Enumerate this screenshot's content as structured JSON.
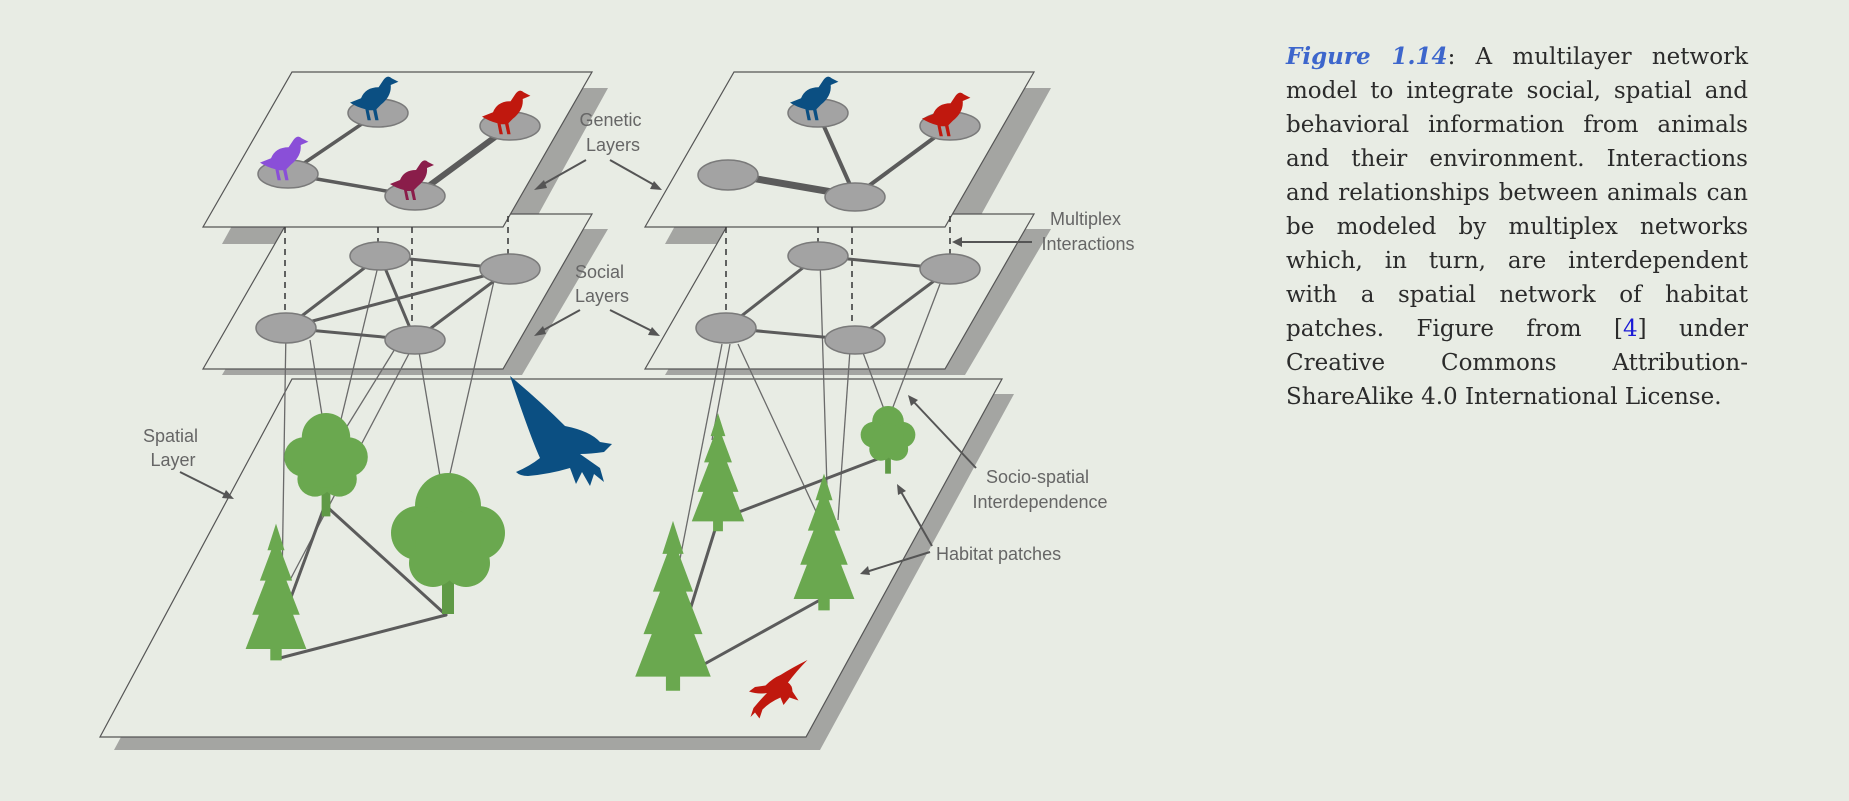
{
  "labels": {
    "genetic": [
      "Genetic",
      "Layers"
    ],
    "social": [
      "Social",
      "Layers"
    ],
    "multiplex": [
      "Multiplex",
      "Interactions"
    ],
    "spatial": [
      "Spatial",
      "Layer"
    ],
    "socio_spatial": [
      "Socio-spatial",
      "Interdependence"
    ],
    "habitat": "Habitat patches"
  },
  "caption": {
    "figure_label": "Figure 1.14",
    "separator": ":",
    "text_before_cite": "  A multilayer network model to integrate social, spatial and behavioral information from animals and their environment. Interactions and relationships between animals can be modeled by multiplex networks which, in turn, are interdependent with a spatial network of habitat patches. Figure from [",
    "cite": "4",
    "text_after_cite": "] under Creative Commons Attribution-ShareAlike 4.0 International License."
  },
  "colors": {
    "background": "#e8ece4",
    "tree_green": "#6aa84f",
    "bird_blue": "#0b4f82",
    "bird_red": "#c0180e",
    "bird_purple": "#8a4fd8",
    "bird_maroon": "#8a1d4a",
    "node_gray": "#a3a3a3",
    "figure_label_blue": "#3d66cc"
  },
  "icons": [
    "bird-icon",
    "eagle-icon",
    "pine-tree-icon",
    "deciduous-tree-icon",
    "arrow-icon"
  ]
}
